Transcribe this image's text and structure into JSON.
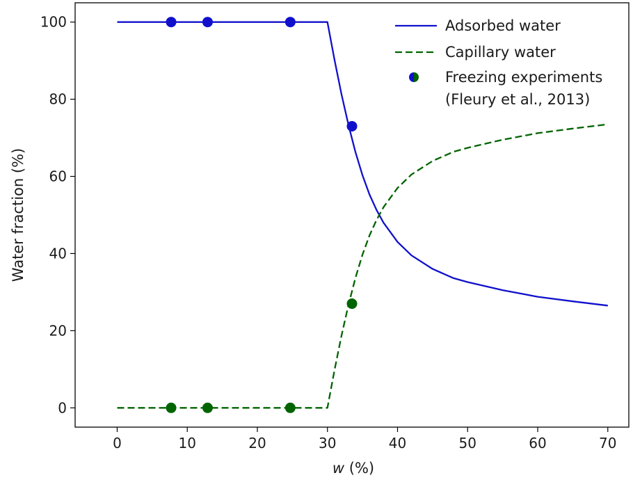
{
  "chart_data": {
    "type": "line",
    "xlabel_var": "w",
    "xlabel_unit": " (%)",
    "ylabel": "Water fraction (%)",
    "xlim": [
      -6,
      73
    ],
    "ylim": [
      -5,
      105
    ],
    "xticks": [
      0,
      10,
      20,
      30,
      40,
      50,
      60,
      70
    ],
    "yticks": [
      0,
      20,
      40,
      60,
      80,
      100
    ],
    "grid": false,
    "legend_position": "top-right",
    "colors": {
      "adsorbed": "#1010cc",
      "capillary": "#006400"
    },
    "series": [
      {
        "name": "Adsorbed water",
        "style": "solid",
        "x": [
          0,
          5,
          10,
          15,
          20,
          25,
          30,
          31,
          32,
          33,
          34,
          35,
          36,
          37,
          38,
          40,
          42,
          45,
          48,
          50,
          55,
          60,
          65,
          70
        ],
        "y": [
          100,
          100,
          100,
          100,
          100,
          100,
          100,
          90.3,
          81.3,
          73.3,
          66.3,
          60.3,
          55.3,
          51.3,
          48,
          43,
          39.5,
          36,
          33.6,
          32.6,
          30.5,
          28.8,
          27.6,
          26.5
        ]
      },
      {
        "name": "Capillary water",
        "style": "dashed",
        "x": [
          0,
          5,
          10,
          15,
          20,
          25,
          30,
          31,
          32,
          33,
          34,
          35,
          36,
          37,
          38,
          40,
          42,
          45,
          48,
          50,
          55,
          60,
          65,
          70
        ],
        "y": [
          0,
          0,
          0,
          0,
          0,
          0,
          0,
          9.7,
          18.7,
          26.7,
          33.7,
          39.7,
          44.7,
          48.7,
          52,
          57,
          60.5,
          64,
          66.4,
          67.4,
          69.5,
          71.2,
          72.4,
          73.5
        ]
      }
    ],
    "experiments": {
      "legend_label_line1": "Freezing experiments",
      "legend_label_line2": "(Fleury et al., 2013)",
      "adsorbed_points": [
        {
          "x": 7.7,
          "y": 100
        },
        {
          "x": 12.9,
          "y": 100
        },
        {
          "x": 24.7,
          "y": 100
        },
        {
          "x": 33.5,
          "y": 73
        }
      ],
      "capillary_points": [
        {
          "x": 7.7,
          "y": 0
        },
        {
          "x": 12.9,
          "y": 0
        },
        {
          "x": 24.7,
          "y": 0
        },
        {
          "x": 33.5,
          "y": 27
        }
      ]
    }
  }
}
